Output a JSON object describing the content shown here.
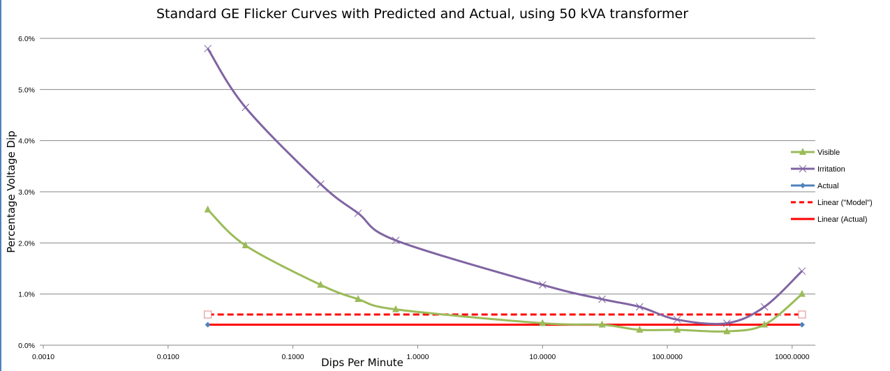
{
  "chart_data": {
    "type": "line",
    "title": "Standard GE Flicker Curves with Predicted and Actual, using 50 kVA transformer",
    "xlabel": "Dips Per Minute",
    "ylabel": "Percentage Voltage Dip",
    "x_scale": "log",
    "xlim": [
      0.001,
      1000
    ],
    "ylim": [
      0,
      6
    ],
    "x_ticks": [
      "0.0010",
      "0.0100",
      "0.1000",
      "1.0000",
      "10.0000",
      "100.0000",
      "1000.0000"
    ],
    "y_ticks": [
      "0.0%",
      "1.0%",
      "2.0%",
      "3.0%",
      "4.0%",
      "5.0%",
      "6.0%"
    ],
    "grid": "horizontal",
    "legend_position": "right",
    "series": [
      {
        "name": "Visible",
        "color": "#9bbb59",
        "marker": "triangle",
        "smooth": true,
        "x": [
          0.0208,
          0.0417,
          0.1667,
          0.3333,
          0.6667,
          10,
          30,
          60,
          120,
          300,
          600,
          1200
        ],
        "y": [
          2.65,
          1.95,
          1.18,
          0.9,
          0.7,
          0.43,
          0.4,
          0.3,
          0.3,
          0.27,
          0.4,
          1.0
        ]
      },
      {
        "name": "Irritation",
        "color": "#8064a2",
        "marker": "x",
        "smooth": true,
        "x": [
          0.0208,
          0.0417,
          0.1667,
          0.3333,
          0.6667,
          10,
          30,
          60,
          120,
          300,
          600,
          1200
        ],
        "y": [
          5.8,
          4.65,
          3.15,
          2.58,
          2.05,
          1.18,
          0.9,
          0.75,
          0.5,
          0.43,
          0.75,
          1.45
        ]
      },
      {
        "name": "Actual",
        "color": "#4f81bd",
        "marker": "diamond",
        "smooth": false,
        "line": false,
        "x": [
          0.0208,
          1200
        ],
        "y": [
          0.4,
          0.4
        ]
      },
      {
        "name": "Model",
        "color": "#ff0000",
        "marker": "square-open",
        "line": false,
        "legend": false,
        "x": [
          0.0208,
          1200
        ],
        "y": [
          0.6,
          0.6
        ]
      },
      {
        "name": "Linear (\"Model\")",
        "color": "#ff0000",
        "dash": true,
        "trendline": true,
        "x": [
          0.0208,
          1200
        ],
        "y": [
          0.6,
          0.6
        ]
      },
      {
        "name": "Linear (Actual)",
        "color": "#ff0000",
        "dash": false,
        "trendline": true,
        "x": [
          0.0208,
          1200
        ],
        "y": [
          0.4,
          0.4
        ]
      }
    ]
  }
}
